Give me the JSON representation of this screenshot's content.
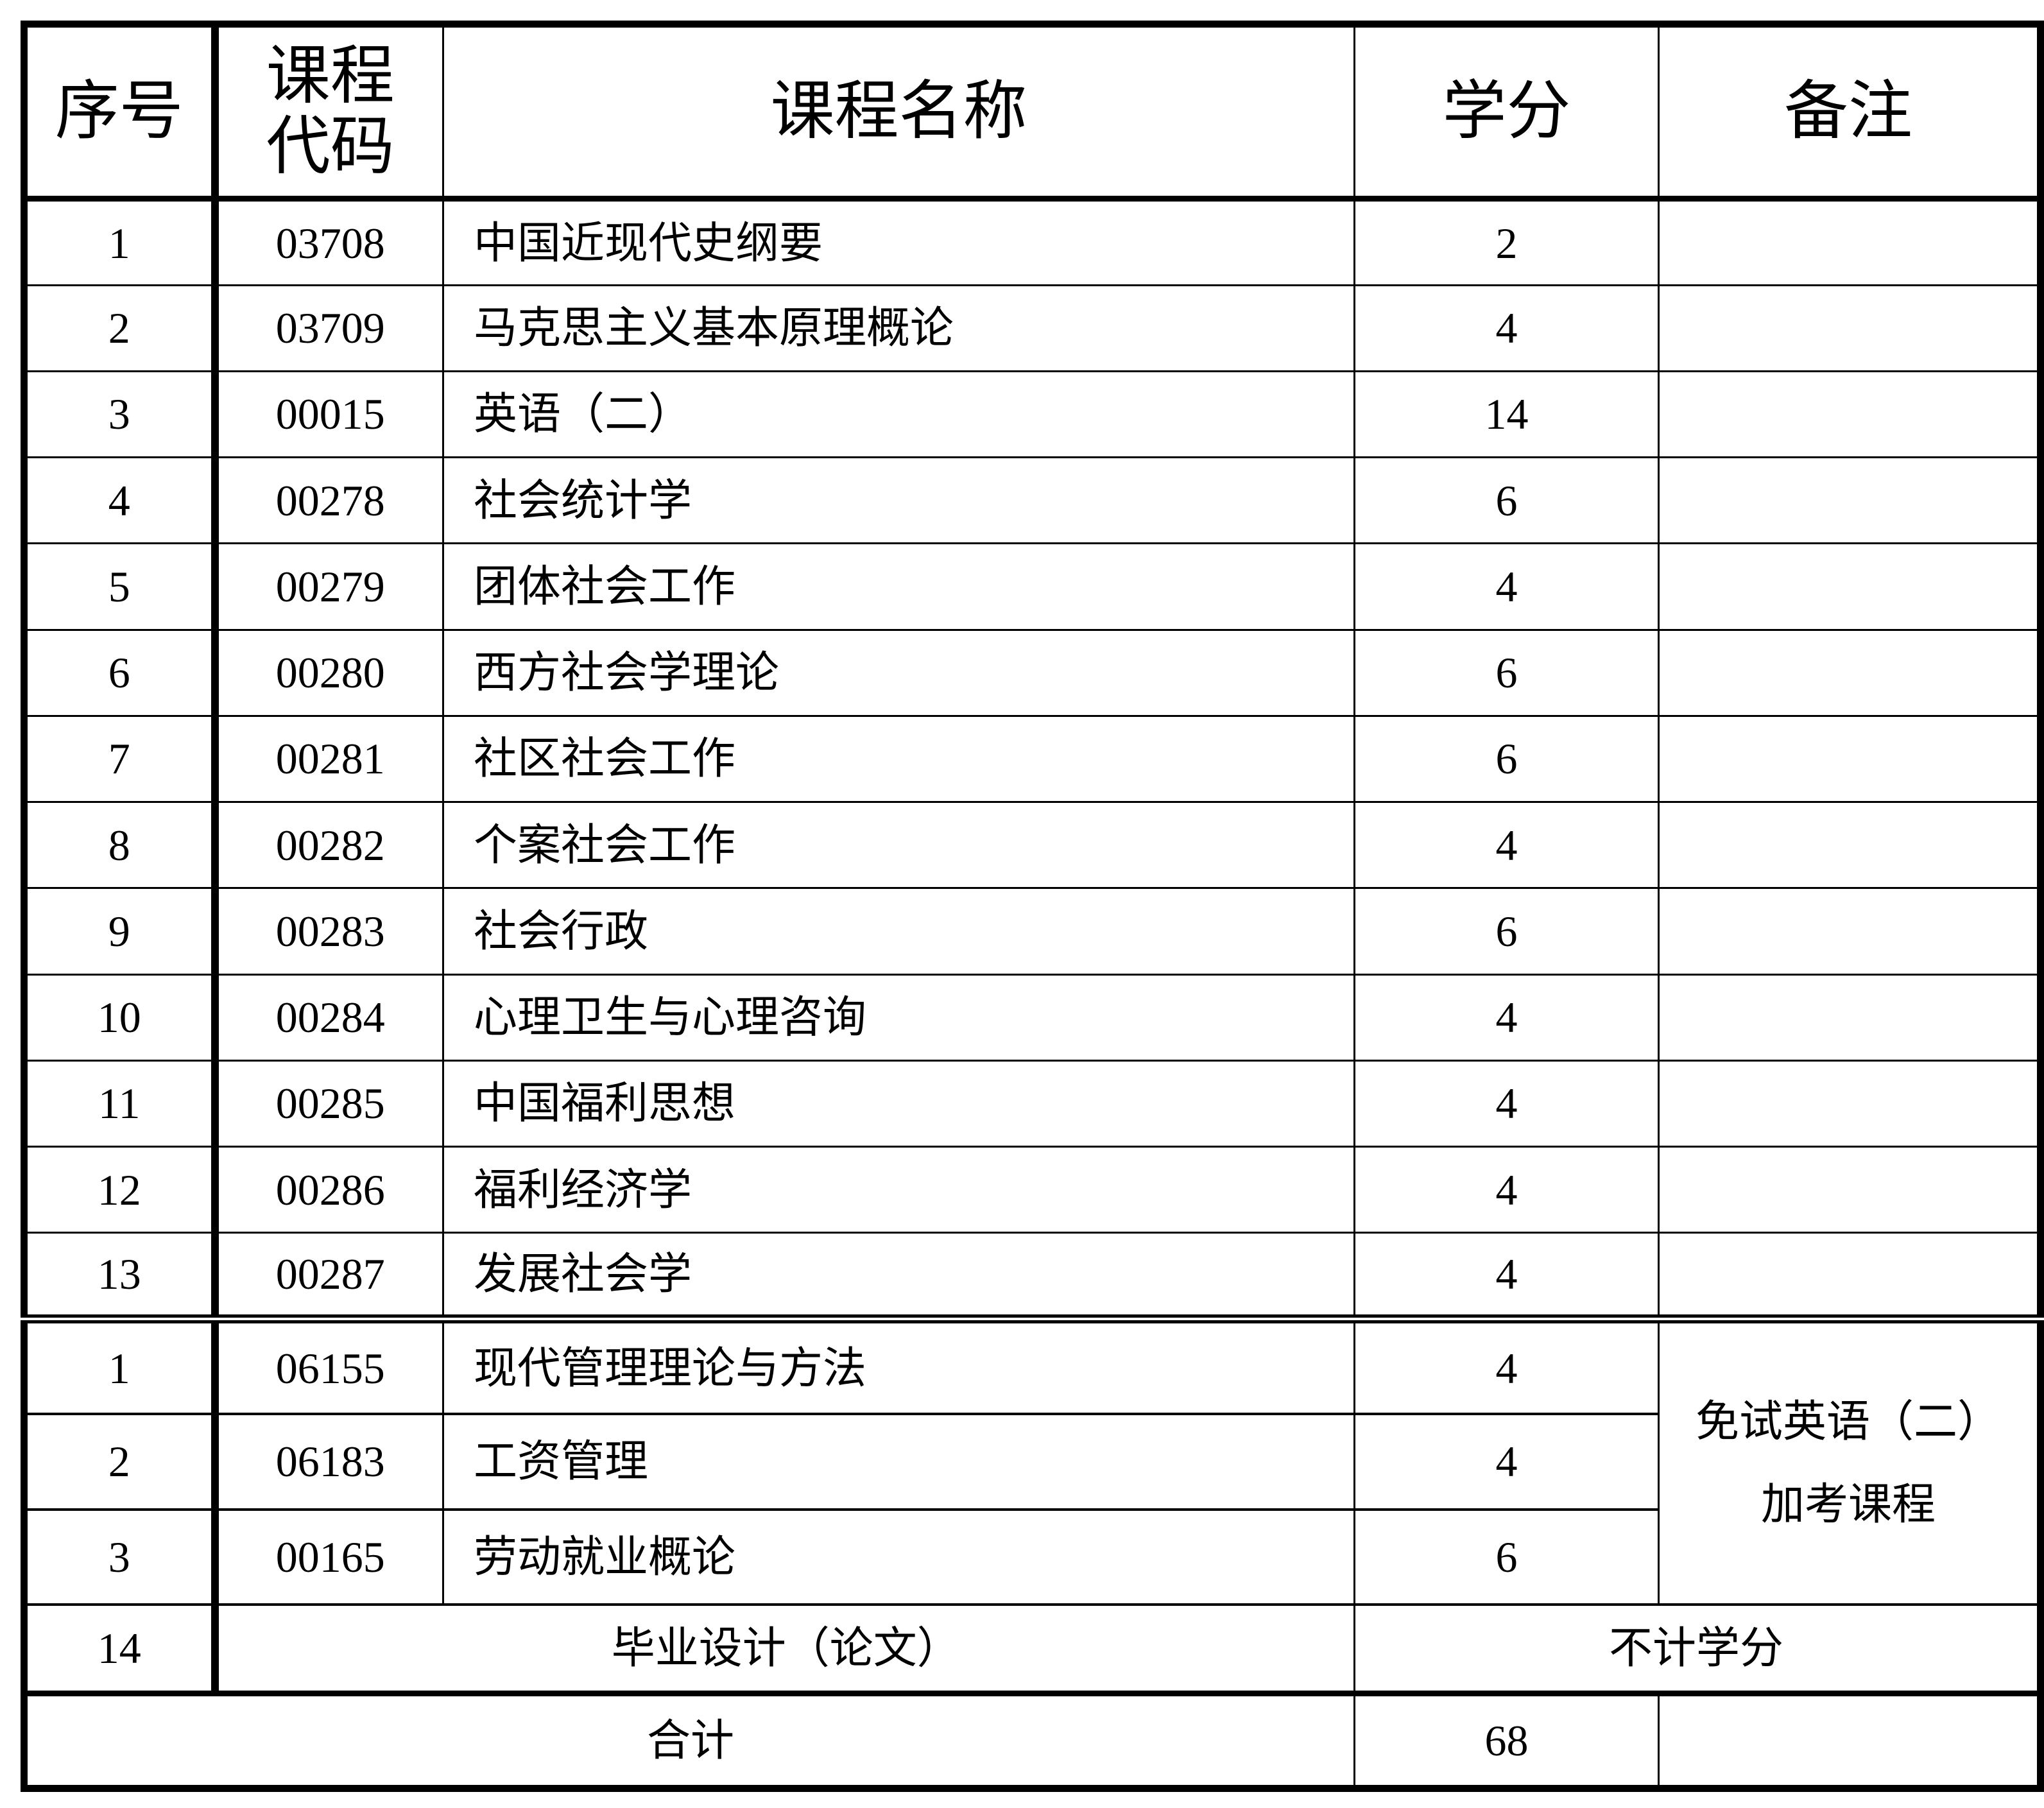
{
  "headers": {
    "seq": "序号",
    "code_line1": "课程",
    "code_line2": "代码",
    "name": "课程名称",
    "credits": "学分",
    "remark": "备注"
  },
  "rows": [
    {
      "seq": "1",
      "code": "03708",
      "name": "中国近现代史纲要",
      "credits": "2"
    },
    {
      "seq": "2",
      "code": "03709",
      "name": "马克思主义基本原理概论",
      "credits": "4"
    },
    {
      "seq": "3",
      "code": "00015",
      "name": "英语（二）",
      "credits": "14"
    },
    {
      "seq": "4",
      "code": "00278",
      "name": "社会统计学",
      "credits": "6"
    },
    {
      "seq": "5",
      "code": "00279",
      "name": "团体社会工作",
      "credits": "4"
    },
    {
      "seq": "6",
      "code": "00280",
      "name": "西方社会学理论",
      "credits": "6"
    },
    {
      "seq": "7",
      "code": "00281",
      "name": "社区社会工作",
      "credits": "6"
    },
    {
      "seq": "8",
      "code": "00282",
      "name": "个案社会工作",
      "credits": "4"
    },
    {
      "seq": "9",
      "code": "00283",
      "name": "社会行政",
      "credits": "6"
    },
    {
      "seq": "10",
      "code": "00284",
      "name": "心理卫生与心理咨询",
      "credits": "4"
    },
    {
      "seq": "11",
      "code": "00285",
      "name": "中国福利思想",
      "credits": "4"
    },
    {
      "seq": "12",
      "code": "00286",
      "name": "福利经济学",
      "credits": "4"
    },
    {
      "seq": "13",
      "code": "00287",
      "name": "发展社会学",
      "credits": "4"
    }
  ],
  "extra_rows": [
    {
      "seq": "1",
      "code": "06155",
      "name": "现代管理理论与方法",
      "credits": "4"
    },
    {
      "seq": "2",
      "code": "06183",
      "name": "工资管理",
      "credits": "4"
    },
    {
      "seq": "3",
      "code": "00165",
      "name": "劳动就业概论",
      "credits": "6"
    }
  ],
  "extra_remark": {
    "line1": "免试英语（二）",
    "line2": "加考课程"
  },
  "thesis": {
    "seq": "14",
    "name": "毕业设计（论文）",
    "credits": "不计学分"
  },
  "total": {
    "label": "合计",
    "credits": "68"
  }
}
